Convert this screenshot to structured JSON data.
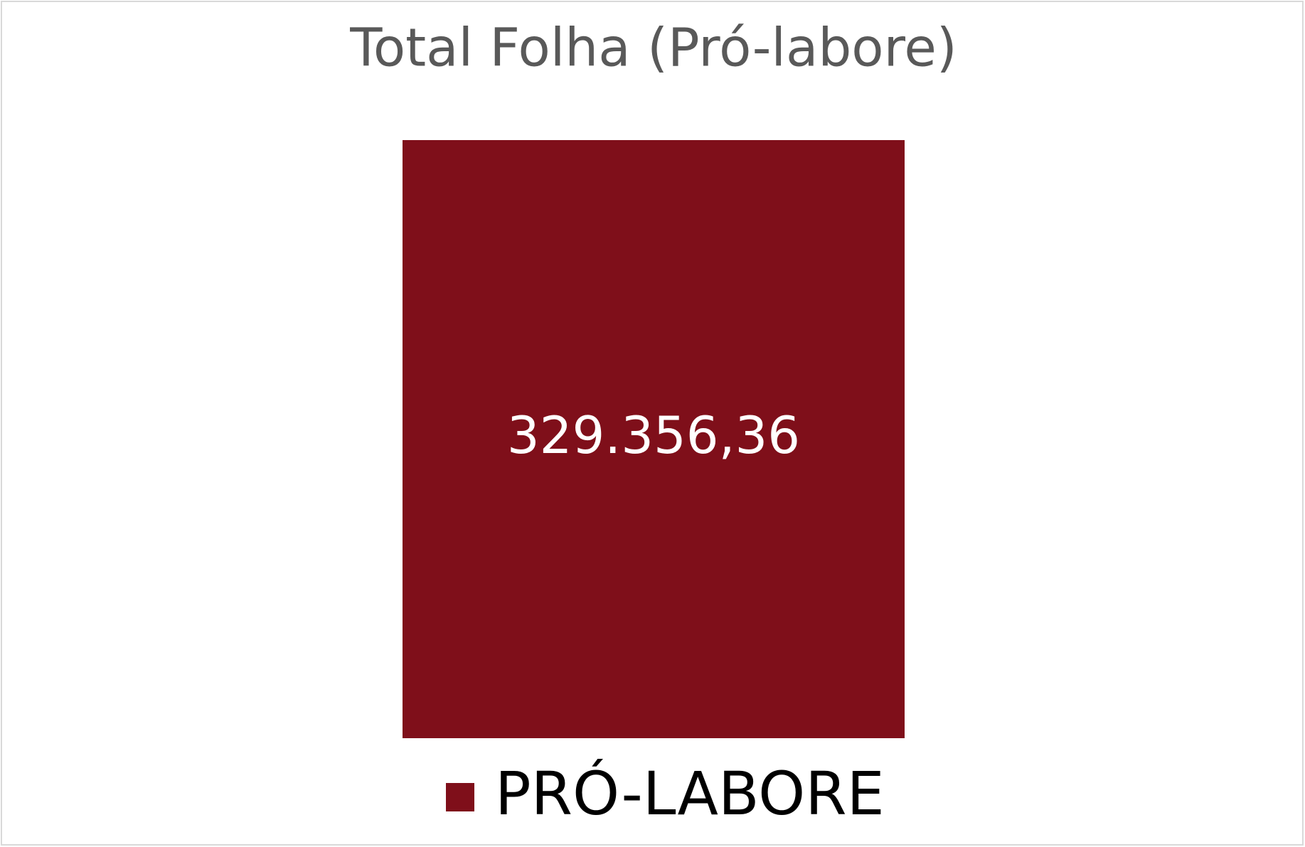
{
  "chart_data": {
    "type": "bar",
    "title": "Total Folha (Pró-labore)",
    "series": [
      {
        "name": "PRÓ-LABORE",
        "color": "#7f0f1a",
        "values": [
          329356.36
        ],
        "value_labels": [
          "329.356,36"
        ]
      }
    ],
    "legend": "bottom"
  }
}
